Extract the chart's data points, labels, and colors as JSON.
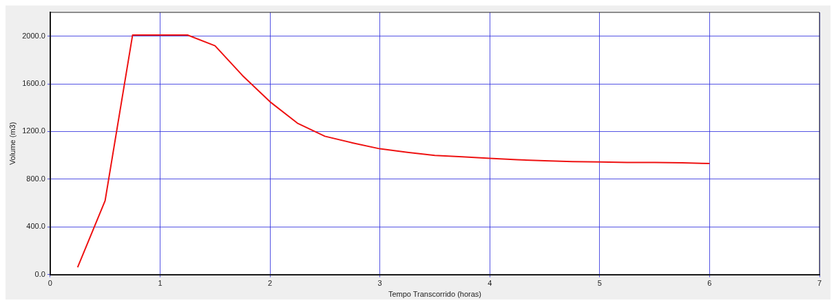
{
  "chart_data": {
    "type": "line",
    "xlabel": "Tempo Transcorrido (horas)",
    "ylabel": "Volume (m3)",
    "x": [
      0.25,
      0.5,
      0.75,
      1.0,
      1.25,
      1.5,
      1.75,
      2.0,
      2.25,
      2.5,
      2.75,
      3.0,
      3.25,
      3.5,
      3.75,
      4.0,
      4.25,
      4.5,
      4.75,
      5.0,
      5.25,
      5.5,
      5.75,
      6.0
    ],
    "series": [
      {
        "color": "#ee1111",
        "values": [
          60,
          620,
          2010,
          2010,
          2010,
          1920,
          1670,
          1450,
          1270,
          1160,
          1105,
          1055,
          1025,
          1000,
          988,
          975,
          963,
          955,
          948,
          945,
          940,
          940,
          937,
          932
        ]
      }
    ],
    "xlim": [
      0,
      7
    ],
    "xticks": [
      0,
      1,
      2,
      3,
      4,
      5,
      6,
      7
    ],
    "ylim": [
      0,
      2200
    ],
    "yticks": [
      {
        "value": 0,
        "label": "0.0"
      },
      {
        "value": 400,
        "label": "400.0"
      },
      {
        "value": 800,
        "label": "800.0"
      },
      {
        "value": 1200,
        "label": "1200.0"
      },
      {
        "value": 1600,
        "label": "1600.0"
      },
      {
        "value": 2000,
        "label": "2000.0"
      }
    ],
    "grid": true,
    "legend": false,
    "marker": "none",
    "line_style": "solid"
  }
}
